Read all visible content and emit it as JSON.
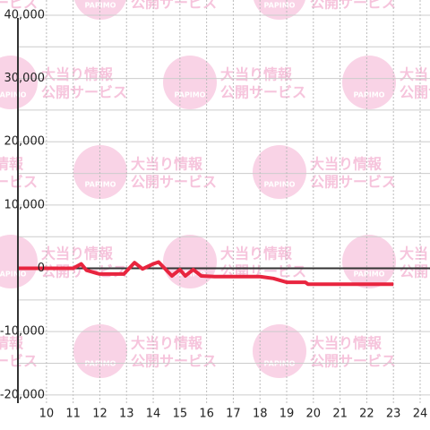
{
  "chart_data": {
    "type": "line",
    "x": [
      8.93,
      11.0,
      11.3,
      11.5,
      11.9,
      12.0,
      12.9,
      13.3,
      13.6,
      14.0,
      14.2,
      14.7,
      15.0,
      15.2,
      15.5,
      15.8,
      16.3,
      18.0,
      18.5,
      19.0,
      19.7,
      19.8,
      23.0
    ],
    "series": [
      {
        "color": "#e8253f",
        "values": [
          0,
          0,
          700,
          -300,
          -800,
          -900,
          -900,
          900,
          -100,
          700,
          1000,
          -1200,
          -200,
          -1200,
          -200,
          -1200,
          -1300,
          -1300,
          -1600,
          -2200,
          -2200,
          -2500,
          -2500
        ]
      }
    ],
    "xlim": [
      8.93,
      24.37
    ],
    "xticks": [
      10,
      11,
      12,
      13,
      14,
      15,
      16,
      17,
      18,
      19,
      20,
      21,
      22,
      23,
      24
    ],
    "ylim": [
      -21300,
      42400
    ],
    "yticks": [
      {
        "value": -20000,
        "label": "-20,000"
      },
      {
        "value": -10000,
        "label": "-10,000"
      },
      0,
      {
        "value": 10000,
        "label": "10,000"
      },
      {
        "value": 20000,
        "label": "20,000"
      },
      {
        "value": 30000,
        "label": "30,000"
      },
      {
        "value": 40000,
        "label": "40,000"
      }
    ],
    "y_minor_ticks": [
      -15000,
      -5000,
      5000,
      15000,
      25000,
      35000
    ],
    "grid": true,
    "watermark": {
      "logo": "PAPIMO",
      "lines": [
        "大当り情報",
        "公開サービス"
      ]
    }
  }
}
